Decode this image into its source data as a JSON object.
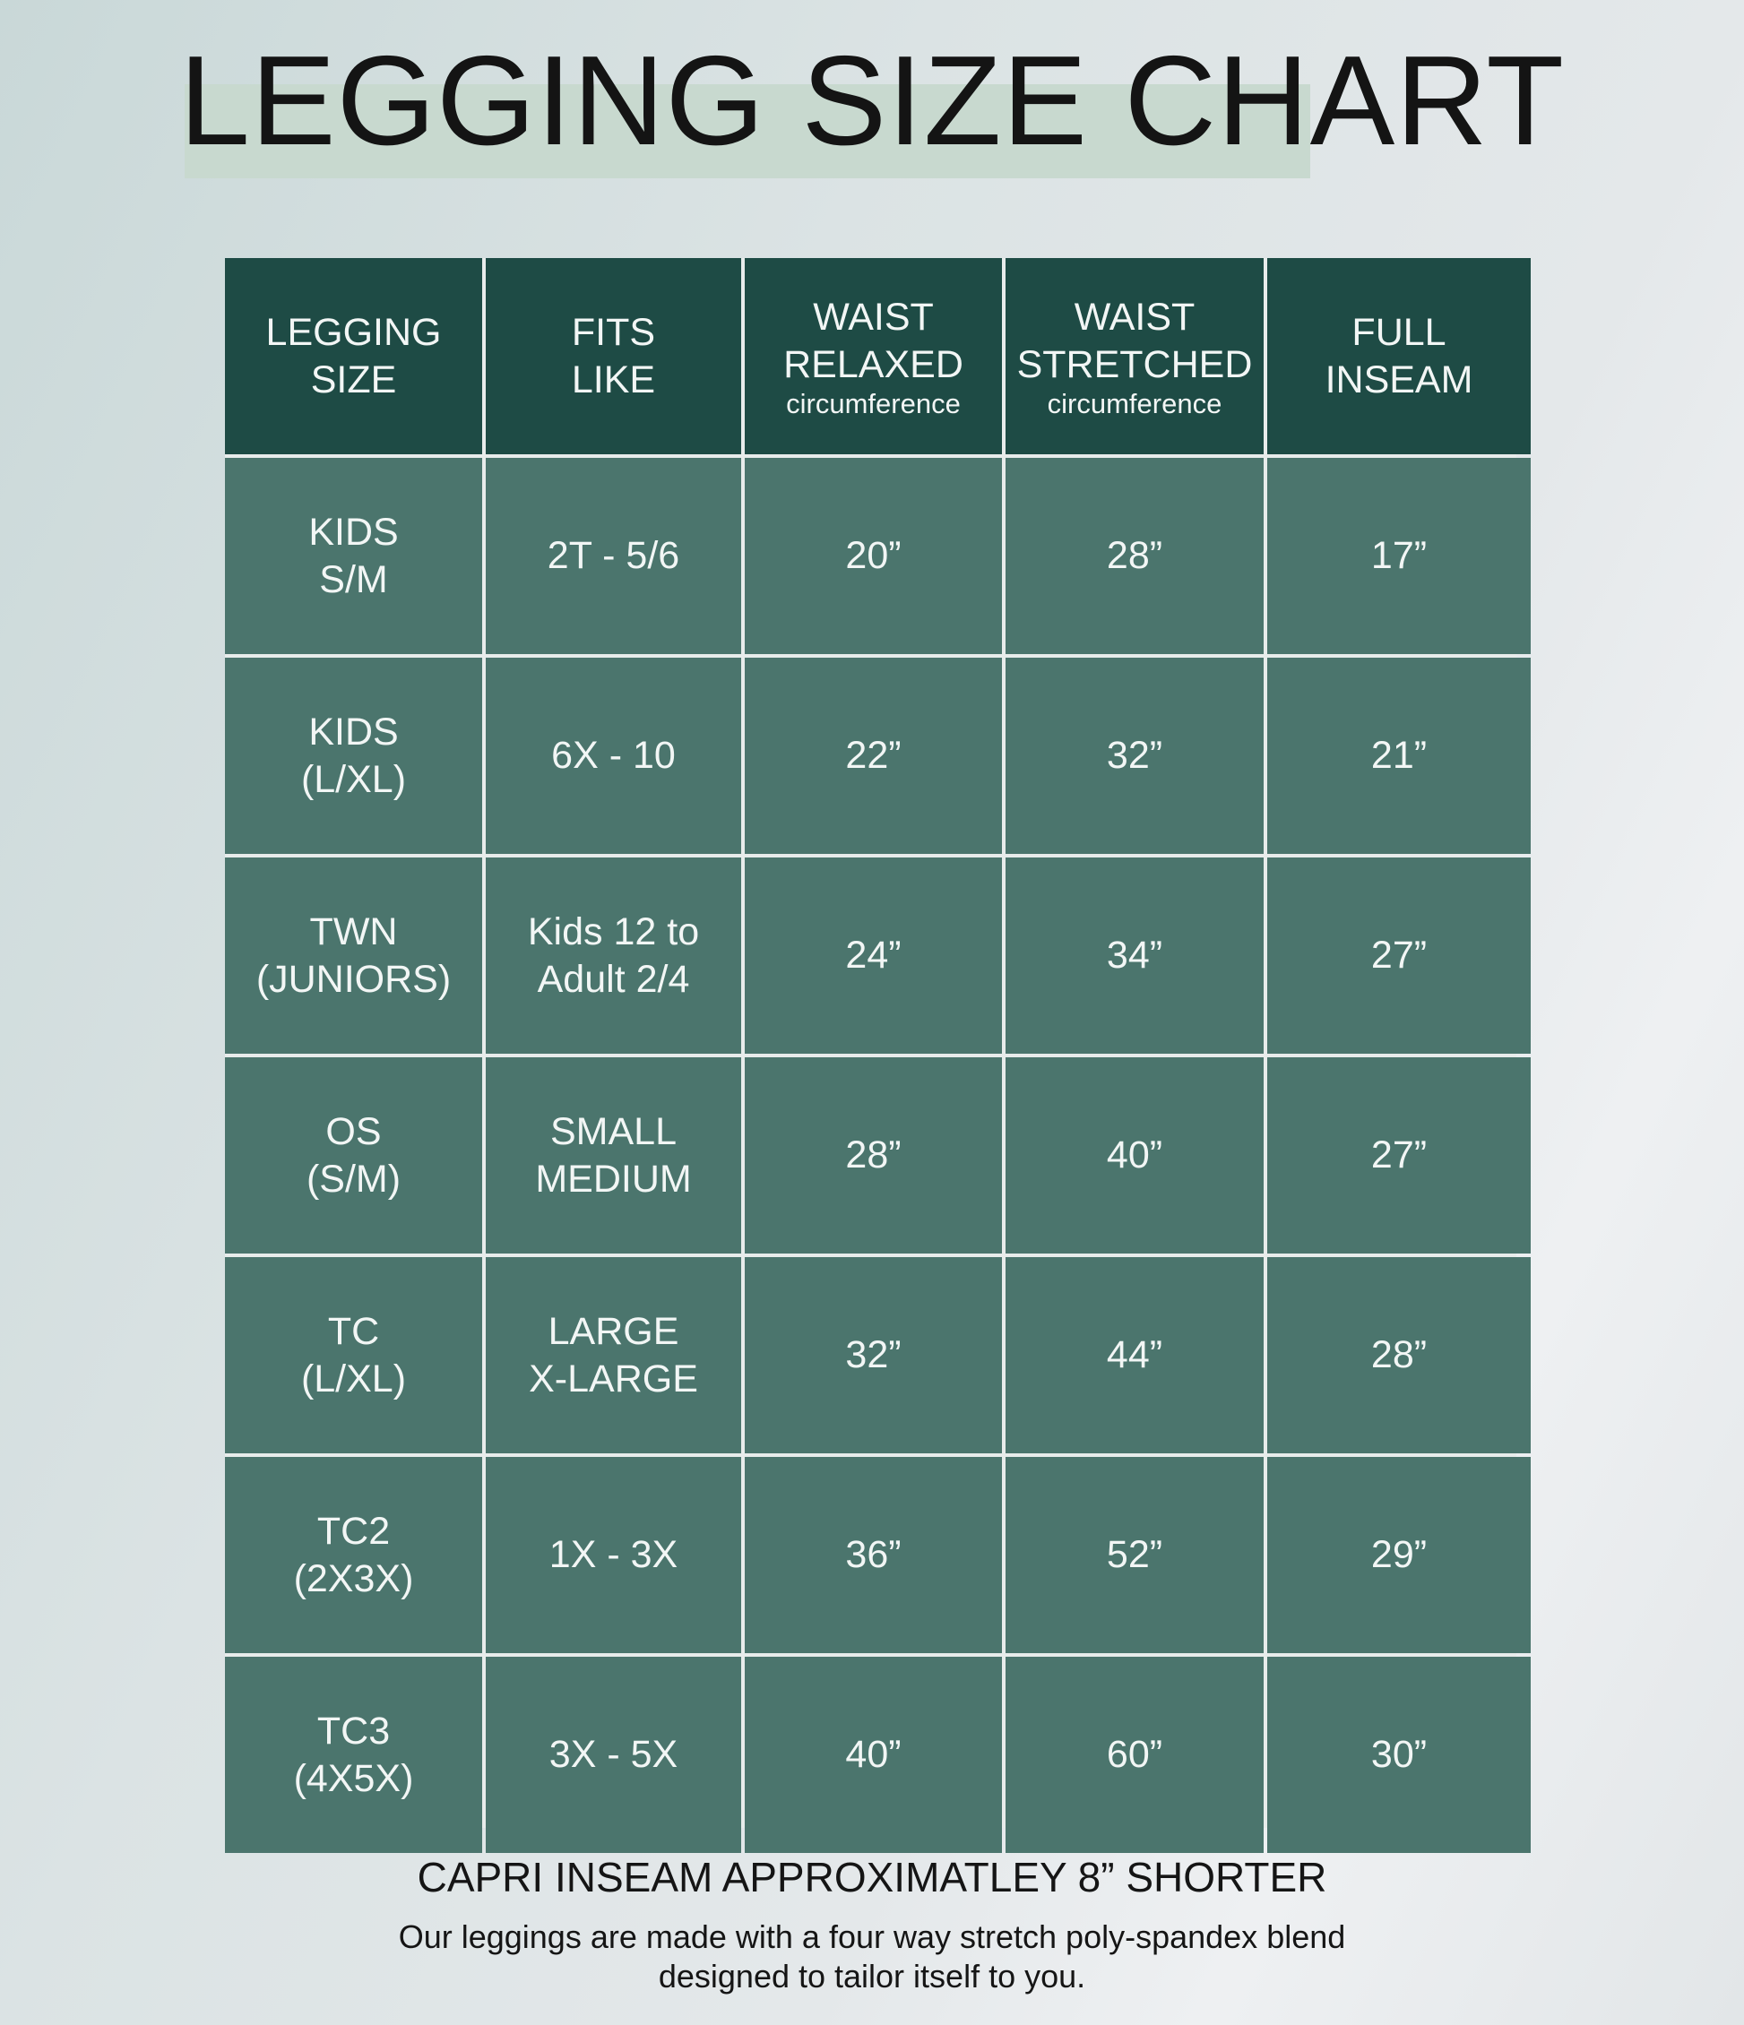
{
  "title": "LEGGING SIZE CHART",
  "colors": {
    "header_bg": "#1e4b45",
    "body_bg": "#4b756d",
    "highlight": "#c8d9cf"
  },
  "headers": [
    {
      "line1": "LEGGING",
      "line2": "SIZE",
      "sub": ""
    },
    {
      "line1": "FITS",
      "line2": "LIKE",
      "sub": ""
    },
    {
      "line1": "WAIST",
      "line2": "RELAXED",
      "sub": "circumference"
    },
    {
      "line1": "WAIST",
      "line2": "STRETCHED",
      "sub": "circumference"
    },
    {
      "line1": "FULL",
      "line2": "INSEAM",
      "sub": ""
    }
  ],
  "rows": [
    {
      "size": [
        "KIDS",
        "S/M"
      ],
      "fits": [
        "2T - 5/6",
        ""
      ],
      "relaxed": "20”",
      "stretched": "28”",
      "inseam": "17”"
    },
    {
      "size": [
        "KIDS",
        "(L/XL)"
      ],
      "fits": [
        "6X - 10",
        ""
      ],
      "relaxed": "22”",
      "stretched": "32”",
      "inseam": "21”"
    },
    {
      "size": [
        "TWN",
        "(JUNIORS)"
      ],
      "fits": [
        "Kids 12 to",
        "Adult 2/4"
      ],
      "relaxed": "24”",
      "stretched": "34”",
      "inseam": "27”"
    },
    {
      "size": [
        "OS",
        "(S/M)"
      ],
      "fits": [
        "SMALL",
        "MEDIUM"
      ],
      "relaxed": "28”",
      "stretched": "40”",
      "inseam": "27”"
    },
    {
      "size": [
        "TC",
        "(L/XL)"
      ],
      "fits": [
        "LARGE",
        "X-LARGE"
      ],
      "relaxed": "32”",
      "stretched": "44”",
      "inseam": "28”"
    },
    {
      "size": [
        "TC2",
        "(2X3X)"
      ],
      "fits": [
        "1X - 3X",
        ""
      ],
      "relaxed": "36”",
      "stretched": "52”",
      "inseam": "29”"
    },
    {
      "size": [
        "TC3",
        "(4X5X)"
      ],
      "fits": [
        "3X - 5X",
        ""
      ],
      "relaxed": "40”",
      "stretched": "60”",
      "inseam": "30”"
    }
  ],
  "footer": {
    "capri_note": "CAPRI INSEAM APPROXIMATLEY 8” SHORTER",
    "line1": "Our leggings are made with a four way stretch poly-spandex blend",
    "line2": "designed to tailor itself to you."
  }
}
